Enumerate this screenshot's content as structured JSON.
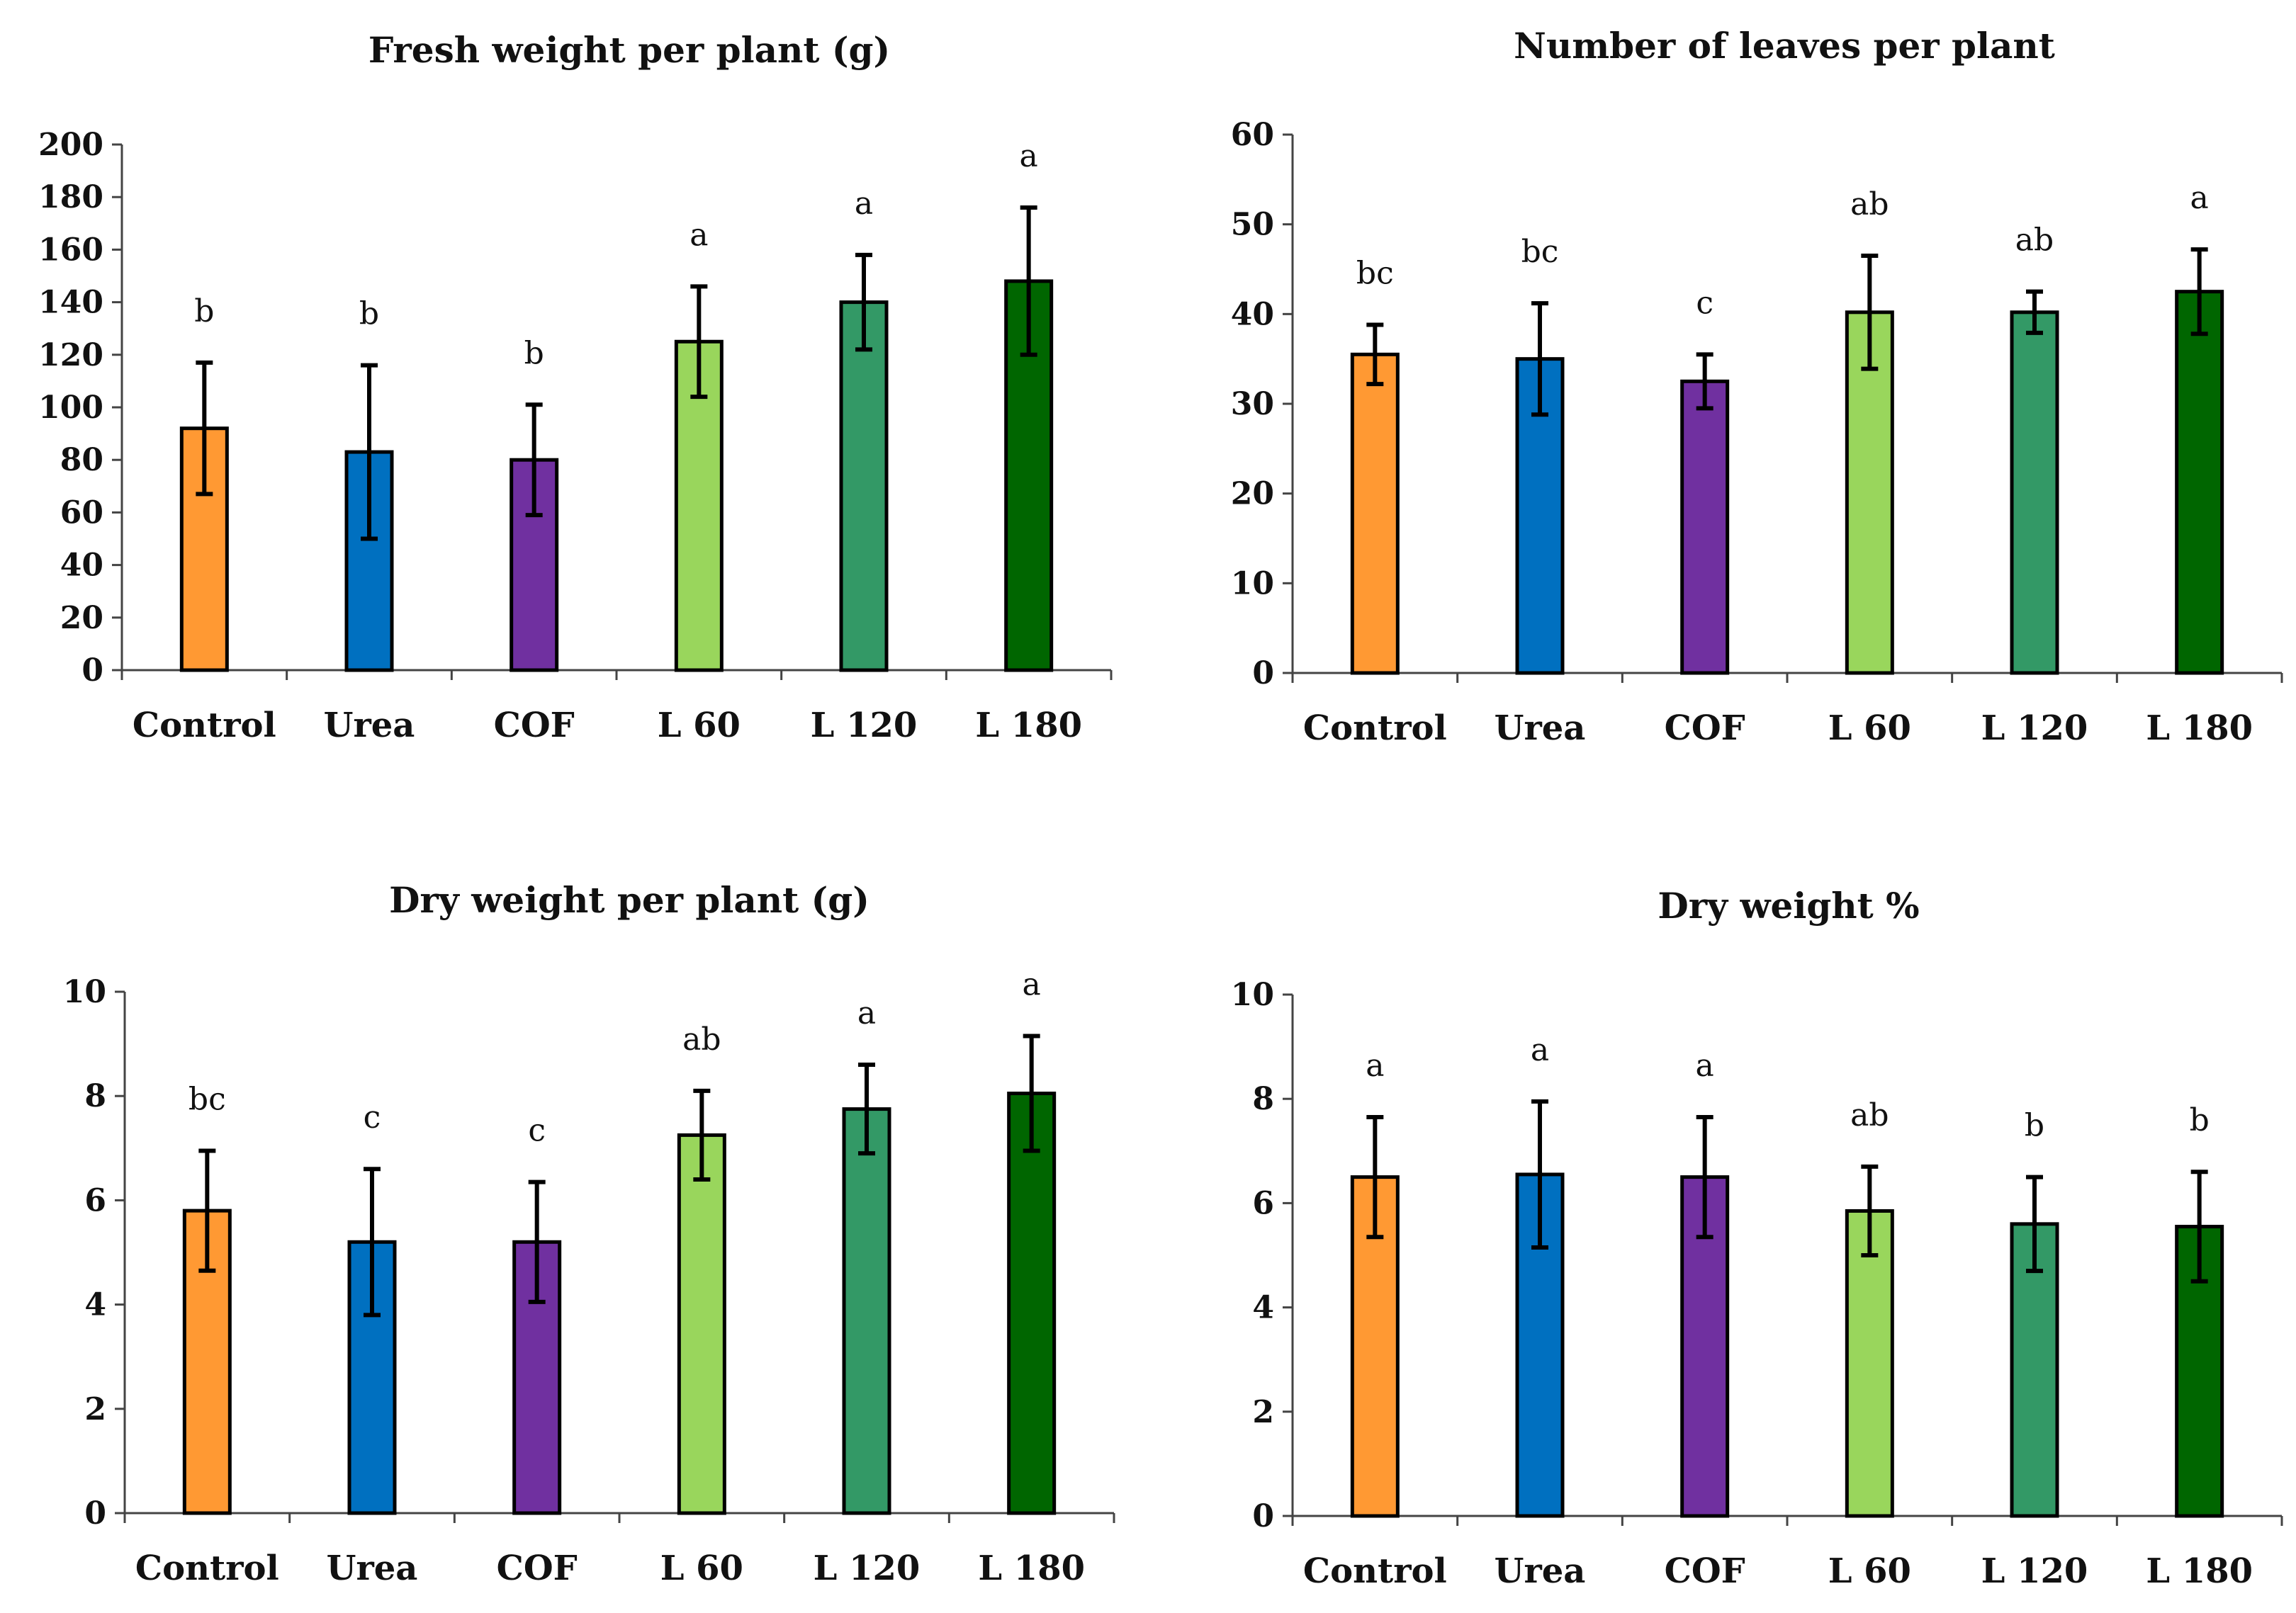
{
  "colors": {
    "Control": "#FF9933",
    "Urea": "#0070C0",
    "COF": "#7030A0",
    "L 60": "#99D65C",
    "L 120": "#339966",
    "L 180": "#006600"
  },
  "chart_data": [
    {
      "type": "bar",
      "title": "Fresh weight per plant (g)",
      "categories": [
        "Control",
        "Urea",
        "COF",
        "L 60",
        "L 120",
        "L 180"
      ],
      "values": [
        92,
        83,
        80,
        125,
        140,
        148
      ],
      "errors": [
        25,
        33,
        21,
        21,
        18,
        28
      ],
      "letters": [
        "b",
        "b",
        "b",
        "a",
        "a",
        "a"
      ],
      "ylim": [
        0,
        200
      ],
      "yticks": [
        0,
        20,
        40,
        60,
        80,
        100,
        120,
        140,
        160,
        180,
        200
      ],
      "xlabel": "",
      "ylabel": ""
    },
    {
      "type": "bar",
      "title": "Number of leaves per plant",
      "categories": [
        "Control",
        "Urea",
        "COF",
        "L 60",
        "L 120",
        "L 180"
      ],
      "values": [
        35.5,
        35,
        32.5,
        40.2,
        40.2,
        42.5
      ],
      "errors": [
        3.3,
        6.2,
        3,
        6.3,
        2.3,
        4.7
      ],
      "letters": [
        "bc",
        "bc",
        "c",
        "ab",
        "ab",
        "a"
      ],
      "ylim": [
        0,
        60
      ],
      "yticks": [
        0,
        10,
        20,
        30,
        40,
        50,
        60
      ],
      "xlabel": "",
      "ylabel": ""
    },
    {
      "type": "bar",
      "title": "Dry weight per plant (g)",
      "categories": [
        "Control",
        "Urea",
        "COF",
        "L 60",
        "L 120",
        "L 180"
      ],
      "values": [
        5.8,
        5.2,
        5.2,
        7.25,
        7.75,
        8.05
      ],
      "errors": [
        1.15,
        1.4,
        1.15,
        0.85,
        0.85,
        1.1
      ],
      "letters": [
        "bc",
        "c",
        "c",
        "ab",
        "a",
        "a"
      ],
      "ylim": [
        0,
        10
      ],
      "yticks": [
        0,
        2,
        4,
        6,
        8,
        10
      ],
      "xlabel": "",
      "ylabel": ""
    },
    {
      "type": "bar",
      "title": "Dry weight %",
      "categories": [
        "Control",
        "Urea",
        "COF",
        "L 60",
        "L 120",
        "L 180"
      ],
      "values": [
        6.5,
        6.55,
        6.5,
        5.85,
        5.6,
        5.55
      ],
      "errors": [
        1.15,
        1.4,
        1.15,
        0.85,
        0.9,
        1.05
      ],
      "letters": [
        "a",
        "a",
        "a",
        "ab",
        "b",
        "b"
      ],
      "ylim": [
        0,
        10
      ],
      "yticks": [
        0,
        2,
        4,
        6,
        8,
        10
      ],
      "xlabel": "",
      "ylabel": ""
    }
  ]
}
